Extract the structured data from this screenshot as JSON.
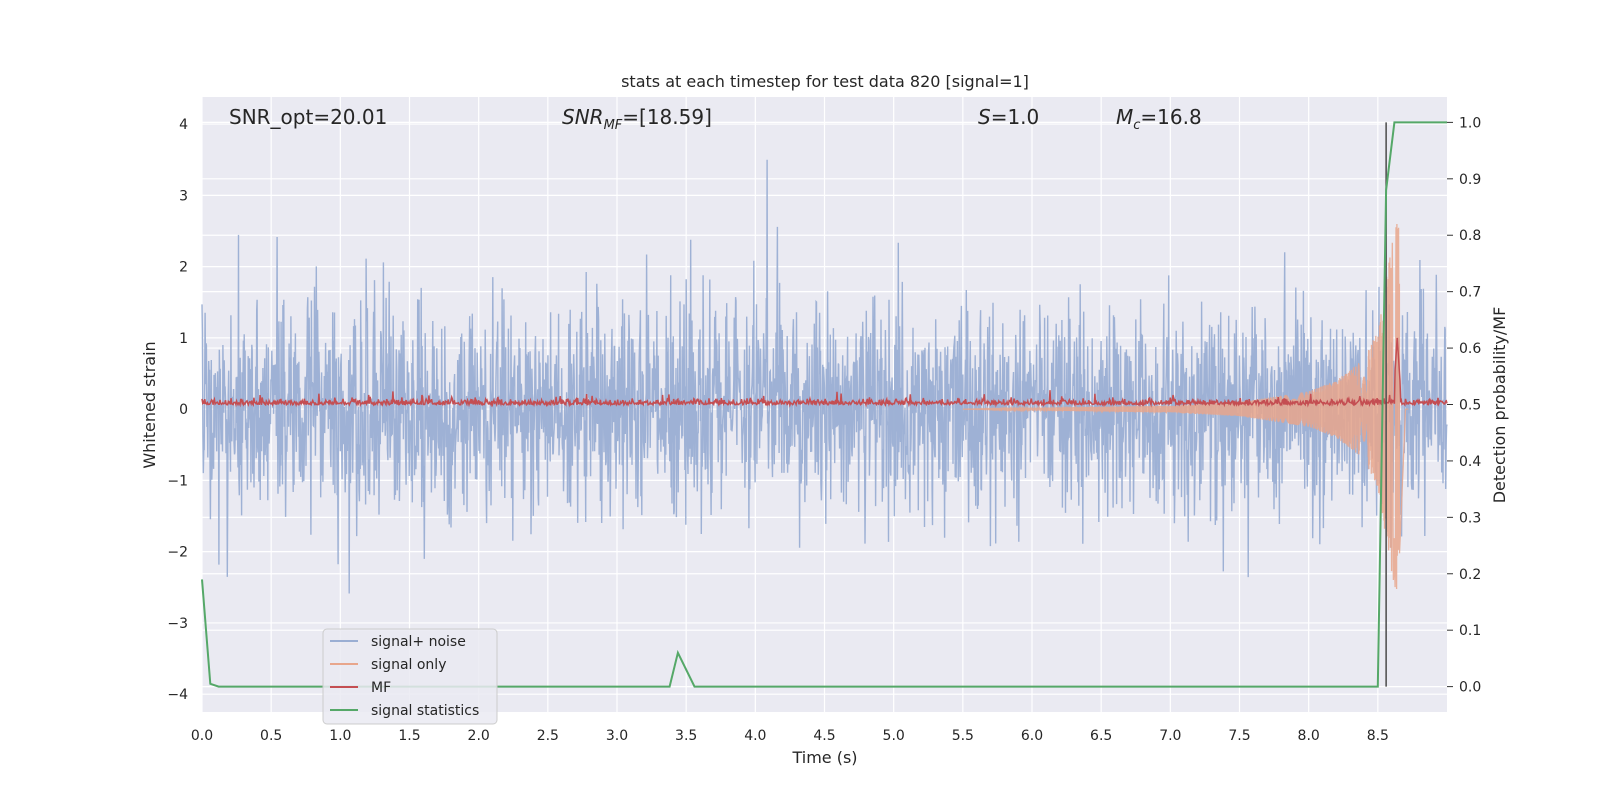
{
  "chart_data": {
    "type": "line",
    "title": "stats at each timestep for test data 820 [signal=1]",
    "xlabel": "Time (s)",
    "ylabel_left": "Whitened strain",
    "ylabel_right": "Detection probability/MF",
    "xlim": [
      0,
      9.0
    ],
    "ylim_left": [
      -4.25,
      4.38
    ],
    "ylim_right": [
      -0.045,
      1.045
    ],
    "x_ticks": [
      "0.0",
      "0.5",
      "1.0",
      "1.5",
      "2.0",
      "2.5",
      "3.0",
      "3.5",
      "4.0",
      "4.5",
      "5.0",
      "5.5",
      "6.0",
      "6.5",
      "7.0",
      "7.5",
      "8.0",
      "8.5"
    ],
    "y_left_ticks": [
      "4",
      "3",
      "2",
      "1",
      "0",
      "−1",
      "−2",
      "−3",
      "−4"
    ],
    "y_right_ticks": [
      "1.0",
      "0.9",
      "0.8",
      "0.7",
      "0.6",
      "0.5",
      "0.4",
      "0.3",
      "0.2",
      "0.1",
      "0.0"
    ],
    "grid": true,
    "legend_position": "lower-left",
    "annotations": {
      "snr_opt": "SNR_opt=20.01",
      "snr_mf_base": "SNR",
      "snr_mf_sub": "MF",
      "snr_mf_rest": "=[18.59]",
      "s_sym": "S",
      "s_val": "=1.0",
      "mc_sym": "M",
      "mc_sub": "c",
      "mc_val": "=16.8"
    },
    "vertical_marker_x": 8.56,
    "series": [
      {
        "name": "signal+ noise",
        "color": "#9aaed3",
        "axis": "left",
        "note": "noise band approx ±1.6 typical, peaks to ±3.8"
      },
      {
        "name": "signal only",
        "color": "#e8a68c",
        "axis": "left",
        "envelope": {
          "x": [
            7.0,
            7.5,
            8.0,
            8.2,
            8.4,
            8.5,
            8.6,
            8.65,
            8.7
          ],
          "amp": [
            0.05,
            0.1,
            0.25,
            0.4,
            0.7,
            1.1,
            2.3,
            2.7,
            0.0
          ]
        }
      },
      {
        "name": "MF",
        "color": "#c44e52",
        "axis": "left",
        "note": "approx 0.05 baseline, peak near 8.64"
      },
      {
        "name": "signal statistics",
        "color": "#55a868",
        "axis": "right",
        "x": [
          0.0,
          0.06,
          0.12,
          3.38,
          3.44,
          3.56,
          8.5,
          8.56,
          8.62,
          9.0
        ],
        "y": [
          0.19,
          0.005,
          0.0,
          0.0,
          0.06,
          0.0,
          0.0,
          0.88,
          1.0,
          1.0
        ]
      }
    ]
  }
}
